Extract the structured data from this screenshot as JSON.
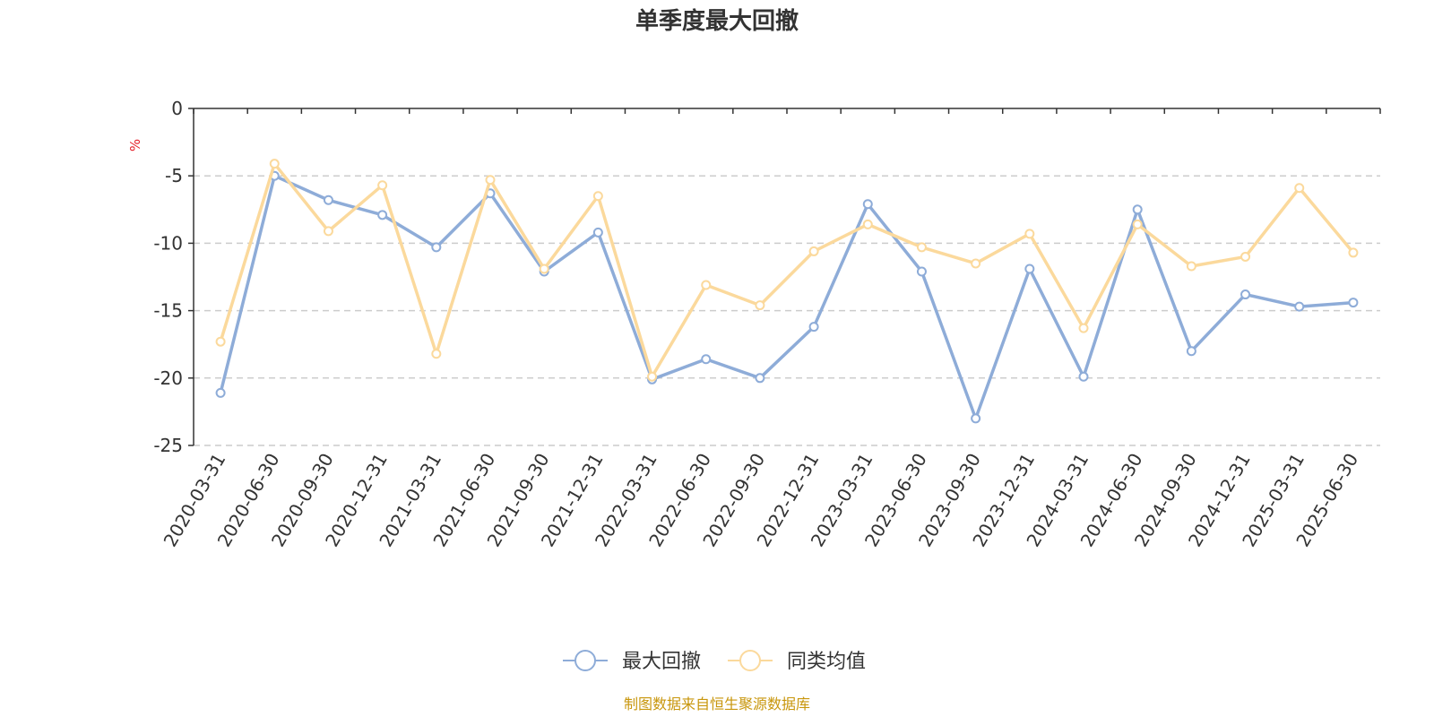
{
  "chart_data": {
    "type": "line",
    "title": "单季度最大回撤",
    "ylabel": "%",
    "ylim": [
      -25,
      0
    ],
    "yticks": [
      0,
      -5,
      -10,
      -15,
      -20,
      -25
    ],
    "grid": true,
    "legend_position": "bottom",
    "categories": [
      "2020-03-31",
      "2020-06-30",
      "2020-09-30",
      "2020-12-31",
      "2021-03-31",
      "2021-06-30",
      "2021-09-30",
      "2021-12-31",
      "2022-03-31",
      "2022-06-30",
      "2022-09-30",
      "2022-12-31",
      "2023-03-31",
      "2023-06-30",
      "2023-09-30",
      "2023-12-31",
      "2024-03-31",
      "2024-06-30",
      "2024-09-30",
      "2024-12-31",
      "2025-03-31",
      "2025-06-30"
    ],
    "series": [
      {
        "name": "最大回撤",
        "color": "#8eacd8",
        "values": [
          -21.1,
          -5.0,
          -6.8,
          -7.9,
          -10.3,
          -6.3,
          -12.1,
          -9.2,
          -20.1,
          -18.6,
          -20.0,
          -16.2,
          -7.1,
          -12.1,
          -23.0,
          -11.9,
          -19.9,
          -7.5,
          -18.0,
          -13.8,
          -14.7,
          -14.4
        ]
      },
      {
        "name": "同类均值",
        "color": "#fbd99c",
        "values": [
          -17.3,
          -4.1,
          -9.1,
          -5.7,
          -18.2,
          -5.3,
          -11.9,
          -6.5,
          -19.9,
          -13.1,
          -14.6,
          -10.6,
          -8.6,
          -10.3,
          -11.5,
          -9.3,
          -16.3,
          -8.6,
          -11.7,
          -11.0,
          -5.9,
          -10.7
        ]
      }
    ],
    "source_note": "制图数据来自恒生聚源数据库"
  }
}
